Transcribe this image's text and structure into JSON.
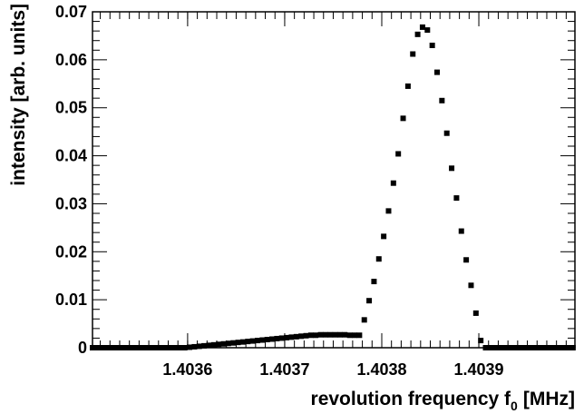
{
  "chart_data": {
    "type": "scatter",
    "title": "",
    "xlabel_main": "revolution frequency f",
    "xlabel_sub": "0",
    "xlabel_unit": "[MHz]",
    "ylabel": "intensity [arb. units]",
    "xlim": [
      1.403502,
      1.403999
    ],
    "ylim": [
      0,
      0.07
    ],
    "x_tick_labels": [
      "1.4036",
      "1.4037",
      "1.4038",
      "1.4039"
    ],
    "x_ticks": [
      1.4036,
      1.4037,
      1.4038,
      1.4039
    ],
    "y_tick_labels": [
      "0",
      "0.01",
      "0.02",
      "0.03",
      "0.04",
      "0.05",
      "0.06",
      "0.07"
    ],
    "y_ticks": [
      0,
      0.01,
      0.02,
      0.03,
      0.04,
      0.05,
      0.06,
      0.07
    ],
    "grid": false,
    "legend": "none",
    "marker_color": "#000000",
    "series": [
      {
        "points": [
          [
            1.403502,
            0.0
          ],
          [
            1.403507,
            0.0
          ],
          [
            1.403512,
            0.0
          ],
          [
            1.403517,
            0.0
          ],
          [
            1.403522,
            0.0
          ],
          [
            1.403527,
            0.0
          ],
          [
            1.403532,
            0.0
          ],
          [
            1.403537,
            0.0
          ],
          [
            1.403542,
            0.0
          ],
          [
            1.403547,
            0.0
          ],
          [
            1.403552,
            0.0
          ],
          [
            1.403557,
            0.0
          ],
          [
            1.403562,
            0.0
          ],
          [
            1.403567,
            0.0
          ],
          [
            1.403572,
            0.0
          ],
          [
            1.403577,
            0.0
          ],
          [
            1.403582,
            0.0
          ],
          [
            1.403587,
            0.0
          ],
          [
            1.403592,
            0.0
          ],
          [
            1.403597,
            0.0
          ],
          [
            1.403602,
            0.0001
          ],
          [
            1.403607,
            0.0002
          ],
          [
            1.403612,
            0.0003
          ],
          [
            1.403617,
            0.0004
          ],
          [
            1.403622,
            0.0005
          ],
          [
            1.403627,
            0.0006
          ],
          [
            1.403632,
            0.0007
          ],
          [
            1.403637,
            0.0008
          ],
          [
            1.403642,
            0.0009
          ],
          [
            1.403647,
            0.001
          ],
          [
            1.403652,
            0.0011
          ],
          [
            1.403657,
            0.0012
          ],
          [
            1.403662,
            0.0013
          ],
          [
            1.403667,
            0.0014
          ],
          [
            1.403672,
            0.0015
          ],
          [
            1.403677,
            0.0016
          ],
          [
            1.403682,
            0.0017
          ],
          [
            1.403687,
            0.0018
          ],
          [
            1.403692,
            0.0019
          ],
          [
            1.403697,
            0.002
          ],
          [
            1.403702,
            0.0021
          ],
          [
            1.403707,
            0.0022
          ],
          [
            1.403712,
            0.0023
          ],
          [
            1.403717,
            0.0024
          ],
          [
            1.403722,
            0.0025
          ],
          [
            1.403727,
            0.0026
          ],
          [
            1.403732,
            0.0026
          ],
          [
            1.403737,
            0.0027
          ],
          [
            1.403742,
            0.0027
          ],
          [
            1.403747,
            0.0027
          ],
          [
            1.403752,
            0.0027
          ],
          [
            1.403757,
            0.0027
          ],
          [
            1.403762,
            0.0027
          ],
          [
            1.403767,
            0.0026
          ],
          [
            1.403772,
            0.0026
          ],
          [
            1.403777,
            0.0026
          ],
          [
            1.403782,
            0.0058
          ],
          [
            1.403787,
            0.0098
          ],
          [
            1.403792,
            0.0138
          ],
          [
            1.403797,
            0.0185
          ],
          [
            1.403802,
            0.0232
          ],
          [
            1.403807,
            0.0285
          ],
          [
            1.403812,
            0.0343
          ],
          [
            1.403817,
            0.0404
          ],
          [
            1.403822,
            0.0478
          ],
          [
            1.403827,
            0.0545
          ],
          [
            1.403832,
            0.0612
          ],
          [
            1.403837,
            0.0653
          ],
          [
            1.403842,
            0.0668
          ],
          [
            1.403847,
            0.0662
          ],
          [
            1.403852,
            0.063
          ],
          [
            1.403857,
            0.0574
          ],
          [
            1.403862,
            0.0515
          ],
          [
            1.403867,
            0.0447
          ],
          [
            1.403872,
            0.0374
          ],
          [
            1.403877,
            0.0312
          ],
          [
            1.403882,
            0.0243
          ],
          [
            1.403887,
            0.0183
          ],
          [
            1.403892,
            0.013
          ],
          [
            1.403897,
            0.0072
          ],
          [
            1.403902,
            0.0015
          ],
          [
            1.403907,
            0.0
          ],
          [
            1.403912,
            0.0
          ],
          [
            1.403917,
            0.0
          ],
          [
            1.403922,
            0.0
          ],
          [
            1.403927,
            0.0
          ],
          [
            1.403932,
            0.0
          ],
          [
            1.403937,
            0.0
          ],
          [
            1.403942,
            0.0
          ],
          [
            1.403947,
            0.0
          ],
          [
            1.403952,
            0.0
          ],
          [
            1.403957,
            0.0
          ],
          [
            1.403962,
            0.0
          ],
          [
            1.403967,
            0.0
          ],
          [
            1.403972,
            0.0
          ],
          [
            1.403977,
            0.0
          ],
          [
            1.403982,
            0.0
          ],
          [
            1.403987,
            0.0
          ],
          [
            1.403992,
            0.0
          ],
          [
            1.403997,
            0.0
          ]
        ]
      }
    ]
  }
}
